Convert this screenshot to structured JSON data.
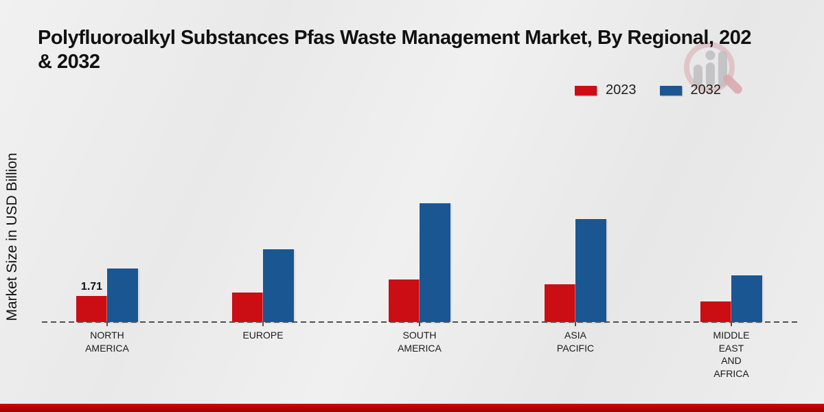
{
  "title": {
    "line1": "Polyfluoroalkyl Substances Pfas Waste Management Market, By Regional, 202",
    "line2": "& 2032"
  },
  "legend": {
    "items": [
      {
        "label": "2023",
        "color": "#ca0e13"
      },
      {
        "label": "2032",
        "color": "#1a5692"
      }
    ]
  },
  "watermark": {
    "name": "market-research-future-logo"
  },
  "footer": {
    "color": "#c00000"
  },
  "chart_data": {
    "type": "bar",
    "title_lines": [
      "Polyfluoroalkyl Substances Pfas Waste Management Market, By Regional, 202",
      "& 2032"
    ],
    "ylabel": "Market Size in USD Billion",
    "xlabel": "",
    "categories": [
      "NORTH AMERICA",
      "EUROPE",
      "SOUTH AMERICA",
      "ASIA PACIFIC",
      "MIDDLE EAST AND AFRICA"
    ],
    "category_label_lines": [
      [
        "NORTH",
        "AMERICA"
      ],
      [
        "EUROPE"
      ],
      [
        "SOUTH",
        "AMERICA"
      ],
      [
        "ASIA",
        "PACIFIC"
      ],
      [
        "MIDDLE",
        "EAST",
        "AND",
        "AFRICA"
      ]
    ],
    "series": [
      {
        "name": "2023",
        "color": "#ca0e13",
        "values": [
          1.71,
          1.94,
          2.79,
          2.48,
          1.35
        ]
      },
      {
        "name": "2032",
        "color": "#1a5692",
        "values": [
          3.51,
          4.77,
          7.79,
          6.75,
          3.06
        ]
      }
    ],
    "data_labels": [
      {
        "series_index": 0,
        "category_index": 0,
        "text": "1.71"
      }
    ],
    "ylim": [
      0,
      8.5
    ],
    "grid": false,
    "legend_position": "top-right",
    "baseline_style": "dashed"
  }
}
